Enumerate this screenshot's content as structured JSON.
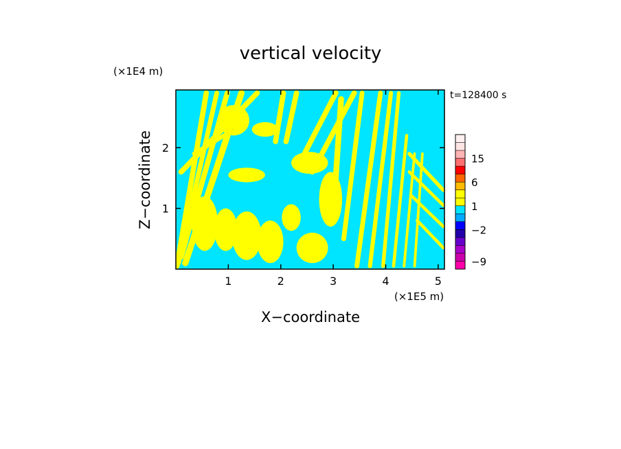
{
  "chart_data": {
    "type": "heatmap",
    "title": "vertical velocity",
    "xlabel": "X−coordinate",
    "ylabel": "Z−coordinate",
    "x_unit": "(×1E5 m)",
    "y_unit": "(×1E4 m)",
    "time_label": "t=128400 s",
    "xlim": [
      0.0,
      5.12
    ],
    "ylim": [
      0.0,
      2.95
    ],
    "x_ticks": [
      1,
      2,
      3,
      4,
      5
    ],
    "y_ticks": [
      1,
      2
    ],
    "x_tick_labels": [
      "1",
      "2",
      "3",
      "4",
      "5"
    ],
    "y_tick_labels": [
      "1",
      "2"
    ],
    "field_colors": {
      "positive": "#ffff00",
      "negative": "#00e5ff"
    },
    "colorbar": {
      "labels": [
        {
          "text": "15",
          "value": 15
        },
        {
          "text": "6",
          "value": 6
        },
        {
          "text": "1",
          "value": 1
        },
        {
          "text": "−2",
          "value": -2
        },
        {
          "text": "−9",
          "value": -9
        }
      ],
      "levels": [
        {
          "value": 24,
          "color": "#fff0f0"
        },
        {
          "value": 18,
          "color": "#ffe4e4"
        },
        {
          "value": 15,
          "color": "#ffb4b4"
        },
        {
          "value": 12,
          "color": "#ff7070"
        },
        {
          "value": 9,
          "color": "#ff0000"
        },
        {
          "value": 6,
          "color": "#ff6600"
        },
        {
          "value": 3,
          "color": "#ffbb00"
        },
        {
          "value": 2,
          "color": "#ffff00"
        },
        {
          "value": 1,
          "color": "#ffff00"
        },
        {
          "value": 0,
          "color": "#00e5ff"
        },
        {
          "value": -1,
          "color": "#00aaff"
        },
        {
          "value": -2,
          "color": "#0000ff"
        },
        {
          "value": -3,
          "color": "#2200aa"
        },
        {
          "value": -5,
          "color": "#6600cc"
        },
        {
          "value": -7,
          "color": "#aa00cc"
        },
        {
          "value": -9,
          "color": "#cc00aa"
        },
        {
          "value": -12,
          "color": "#ff00aa"
        }
      ]
    },
    "bands": [
      {
        "x0": 0.02,
        "z0": 0.05,
        "x1": 0.58,
        "z1": 2.9,
        "width": 0.1
      },
      {
        "x0": 0.05,
        "z0": 0.1,
        "x1": 0.78,
        "z1": 2.9,
        "width": 0.09
      },
      {
        "x0": 0.1,
        "z0": 0.2,
        "x1": 0.98,
        "z1": 2.9,
        "width": 0.1
      },
      {
        "x0": 0.18,
        "z0": 0.1,
        "x1": 1.25,
        "z1": 2.9,
        "width": 0.12
      },
      {
        "x0": 0.1,
        "z0": 1.6,
        "x1": 1.55,
        "z1": 2.9,
        "width": 0.1
      },
      {
        "x0": 0.35,
        "z0": 1.9,
        "x1": 1.3,
        "z1": 2.4,
        "width": 0.08
      },
      {
        "x0": 1.9,
        "z0": 2.1,
        "x1": 2.05,
        "z1": 2.9,
        "width": 0.1
      },
      {
        "x0": 2.1,
        "z0": 2.1,
        "x1": 2.3,
        "z1": 2.9,
        "width": 0.1
      },
      {
        "x0": 2.45,
        "z0": 1.9,
        "x1": 3.05,
        "z1": 2.9,
        "width": 0.1
      },
      {
        "x0": 2.6,
        "z0": 1.6,
        "x1": 3.4,
        "z1": 2.9,
        "width": 0.1
      },
      {
        "x0": 3.0,
        "z0": 0.9,
        "x1": 3.15,
        "z1": 2.8,
        "width": 0.11
      },
      {
        "x0": 3.2,
        "z0": 0.5,
        "x1": 3.55,
        "z1": 2.9,
        "width": 0.09
      },
      {
        "x0": 3.45,
        "z0": 0.05,
        "x1": 3.9,
        "z1": 2.9,
        "width": 0.09
      },
      {
        "x0": 3.7,
        "z0": 0.05,
        "x1": 4.1,
        "z1": 2.9,
        "width": 0.08
      },
      {
        "x0": 3.95,
        "z0": 0.05,
        "x1": 4.25,
        "z1": 2.9,
        "width": 0.07
      },
      {
        "x0": 4.15,
        "z0": 0.05,
        "x1": 4.4,
        "z1": 2.2,
        "width": 0.06
      },
      {
        "x0": 4.35,
        "z0": 0.05,
        "x1": 4.55,
        "z1": 1.9,
        "width": 0.05
      },
      {
        "x0": 4.55,
        "z0": 0.05,
        "x1": 4.7,
        "z1": 1.9,
        "width": 0.05
      },
      {
        "x0": 4.45,
        "z0": 1.9,
        "x1": 5.1,
        "z1": 1.3,
        "width": 0.07
      },
      {
        "x0": 4.45,
        "z0": 1.6,
        "x1": 5.1,
        "z1": 1.05,
        "width": 0.06
      },
      {
        "x0": 4.5,
        "z0": 1.2,
        "x1": 5.1,
        "z1": 0.7,
        "width": 0.06
      },
      {
        "x0": 4.6,
        "z0": 0.8,
        "x1": 5.1,
        "z1": 0.35,
        "width": 0.06
      }
    ],
    "blobs": [
      {
        "x": 0.55,
        "z": 0.75,
        "rx": 0.25,
        "rz": 0.45
      },
      {
        "x": 0.95,
        "z": 0.65,
        "rx": 0.22,
        "rz": 0.35
      },
      {
        "x": 1.35,
        "z": 0.55,
        "rx": 0.28,
        "rz": 0.4
      },
      {
        "x": 1.8,
        "z": 0.45,
        "rx": 0.25,
        "rz": 0.35
      },
      {
        "x": 2.6,
        "z": 0.35,
        "rx": 0.3,
        "rz": 0.25
      },
      {
        "x": 2.2,
        "z": 0.85,
        "rx": 0.18,
        "rz": 0.22
      },
      {
        "x": 2.95,
        "z": 1.15,
        "rx": 0.22,
        "rz": 0.45
      },
      {
        "x": 1.35,
        "z": 1.55,
        "rx": 0.35,
        "rz": 0.12
      },
      {
        "x": 2.55,
        "z": 1.75,
        "rx": 0.35,
        "rz": 0.18
      },
      {
        "x": 1.1,
        "z": 2.45,
        "rx": 0.3,
        "rz": 0.25
      },
      {
        "x": 1.7,
        "z": 2.3,
        "rx": 0.25,
        "rz": 0.12
      }
    ]
  }
}
